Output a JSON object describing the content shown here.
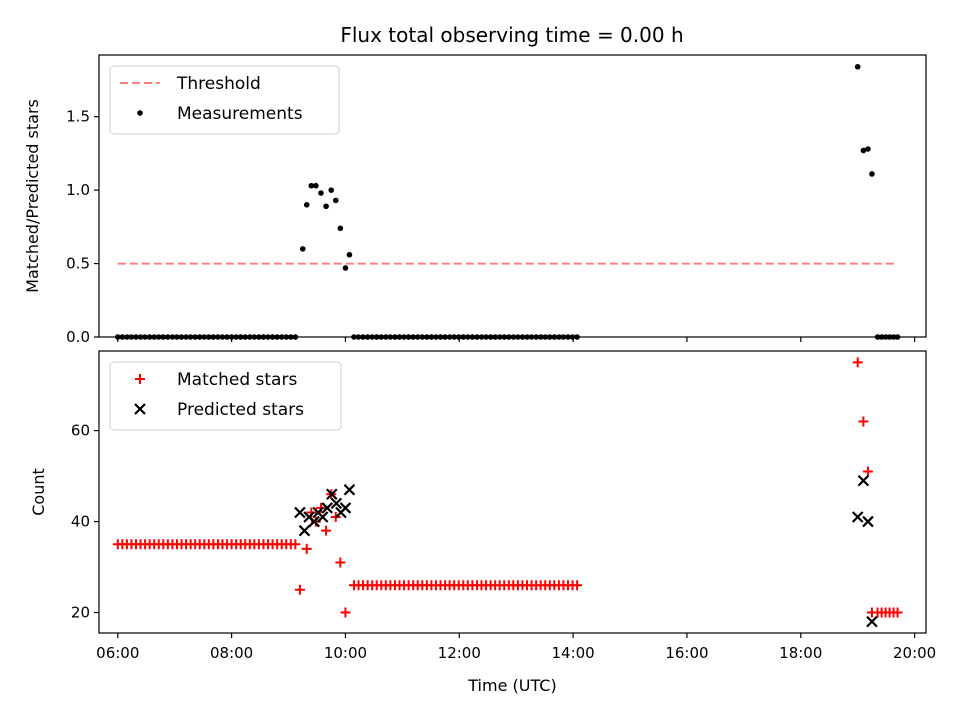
{
  "title": "Flux total observing time = 0.00 h",
  "chart_data": [
    {
      "type": "scatter",
      "panel": "top",
      "ylabel": "Matched/Predicted stars",
      "xlabel": "",
      "x_unit": "hours (UTC)",
      "xlim": [
        5.67,
        20.2
      ],
      "ylim": [
        0.0,
        1.92
      ],
      "yticks": [
        0.0,
        0.5,
        1.0,
        1.5
      ],
      "ytick_labels": [
        "0.0",
        "0.5",
        "1.0",
        "1.5"
      ],
      "xticks": [
        6,
        8,
        10,
        12,
        14,
        16,
        18,
        20
      ],
      "legend": "top-left",
      "grid": false,
      "threshold": {
        "name": "Threshold",
        "y": 0.5,
        "x_range": [
          6.0,
          19.7
        ],
        "color": "#ff7f7f",
        "style": "dashed"
      },
      "series": [
        {
          "name": "Measurements",
          "color": "#000000",
          "marker": "dot",
          "zero_runs": [
            {
              "start": 6.0,
              "end": 9.12,
              "step": 0.08
            },
            {
              "start": 10.15,
              "end": 14.1,
              "step": 0.08
            },
            {
              "start": 19.35,
              "end": 19.7,
              "step": 0.07
            }
          ],
          "points": [
            [
              9.25,
              0.6
            ],
            [
              9.32,
              0.9
            ],
            [
              9.4,
              1.03
            ],
            [
              9.48,
              1.03
            ],
            [
              9.57,
              0.98
            ],
            [
              9.66,
              0.89
            ],
            [
              9.75,
              1.0
            ],
            [
              9.83,
              0.93
            ],
            [
              9.91,
              0.74
            ],
            [
              10.0,
              0.47
            ],
            [
              10.07,
              0.56
            ],
            [
              19.0,
              1.84
            ],
            [
              19.1,
              1.27
            ],
            [
              19.18,
              1.28
            ],
            [
              19.25,
              1.11
            ]
          ]
        }
      ]
    },
    {
      "type": "scatter",
      "panel": "bottom",
      "ylabel": "Count",
      "xlabel": "Time (UTC)",
      "x_unit": "hours (UTC)",
      "xlim": [
        5.67,
        20.2
      ],
      "ylim": [
        15.5,
        77.5
      ],
      "yticks": [
        20,
        40,
        60
      ],
      "ytick_labels": [
        "20",
        "40",
        "60"
      ],
      "xticks": [
        6,
        8,
        10,
        12,
        14,
        16,
        18,
        20
      ],
      "xtick_labels": [
        "06:00",
        "08:00",
        "10:00",
        "12:00",
        "14:00",
        "16:00",
        "18:00",
        "20:00"
      ],
      "legend": "top-left",
      "grid": false,
      "series": [
        {
          "name": "Matched stars",
          "color": "#ff0000",
          "marker": "plus",
          "constant_runs": [
            {
              "start": 6.0,
              "end": 9.12,
              "step": 0.08,
              "y": 35
            },
            {
              "start": 10.15,
              "end": 14.1,
              "step": 0.08,
              "y": 26
            },
            {
              "start": 19.35,
              "end": 19.7,
              "step": 0.07,
              "y": 20
            }
          ],
          "points": [
            [
              9.2,
              25
            ],
            [
              9.32,
              34
            ],
            [
              9.4,
              42
            ],
            [
              9.48,
              40
            ],
            [
              9.57,
              43
            ],
            [
              9.66,
              38
            ],
            [
              9.75,
              46
            ],
            [
              9.83,
              41
            ],
            [
              9.91,
              31
            ],
            [
              10.0,
              20
            ],
            [
              19.0,
              75
            ],
            [
              19.1,
              62
            ],
            [
              19.18,
              51
            ],
            [
              19.25,
              20
            ]
          ]
        },
        {
          "name": "Predicted stars",
          "color": "#000000",
          "marker": "x",
          "points": [
            [
              9.2,
              42
            ],
            [
              9.28,
              38
            ],
            [
              9.36,
              41
            ],
            [
              9.45,
              40
            ],
            [
              9.52,
              42
            ],
            [
              9.6,
              41
            ],
            [
              9.68,
              43
            ],
            [
              9.76,
              46
            ],
            [
              9.84,
              44
            ],
            [
              9.92,
              42
            ],
            [
              10.0,
              43
            ],
            [
              10.07,
              47
            ],
            [
              19.0,
              41
            ],
            [
              19.1,
              49
            ],
            [
              19.18,
              40
            ],
            [
              19.25,
              18
            ]
          ]
        }
      ]
    }
  ]
}
